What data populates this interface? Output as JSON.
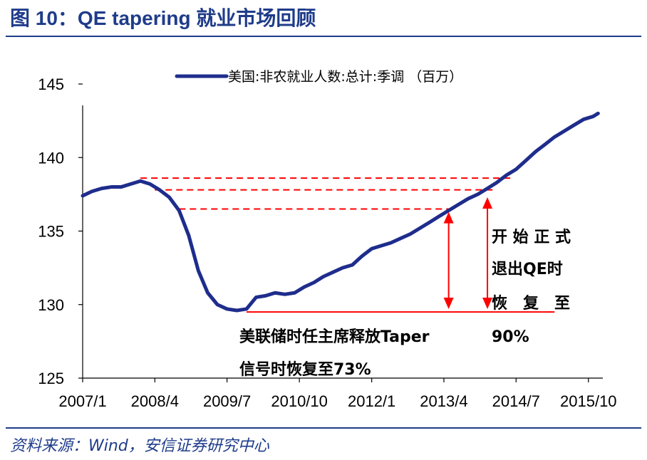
{
  "figure": {
    "title": "图 10：QE tapering 就业市场回顾",
    "source": "资料来源：Wind，安信证券研究中心"
  },
  "chart_data": {
    "type": "line",
    "title": "",
    "xlabel": "",
    "ylabel": "",
    "ylim": [
      125,
      145
    ],
    "y_ticks": [
      125,
      130,
      135,
      140,
      145
    ],
    "x_tick_labels": [
      "2007/1",
      "2008/4",
      "2009/7",
      "2010/10",
      "2012/1",
      "2013/4",
      "2014/7",
      "2015/10"
    ],
    "x_tick_dates": [
      "2007-01",
      "2008-04",
      "2009-07",
      "2010-10",
      "2012-01",
      "2013-04",
      "2014-07",
      "2015-10"
    ],
    "grid": false,
    "legend_position": "top",
    "colors": {
      "series": "#1e2d8c",
      "annotation": "#ff0000"
    },
    "series": [
      {
        "name": "美国:非农就业人数:总计:季调 （百万）",
        "x": [
          "2007-01",
          "2007-03",
          "2007-05",
          "2007-07",
          "2007-09",
          "2007-11",
          "2008-01",
          "2008-03",
          "2008-05",
          "2008-07",
          "2008-09",
          "2008-11",
          "2009-01",
          "2009-03",
          "2009-05",
          "2009-07",
          "2009-09",
          "2009-11",
          "2010-01",
          "2010-03",
          "2010-05",
          "2010-07",
          "2010-09",
          "2010-11",
          "2011-01",
          "2011-03",
          "2011-05",
          "2011-07",
          "2011-09",
          "2011-11",
          "2012-01",
          "2012-03",
          "2012-05",
          "2012-07",
          "2012-09",
          "2012-11",
          "2013-01",
          "2013-03",
          "2013-05",
          "2013-07",
          "2013-09",
          "2013-11",
          "2014-01",
          "2014-03",
          "2014-05",
          "2014-07",
          "2014-09",
          "2014-11",
          "2015-01",
          "2015-03",
          "2015-05",
          "2015-07",
          "2015-09",
          "2015-11",
          "2015-12"
        ],
        "values": [
          137.4,
          137.7,
          137.9,
          138.0,
          138.0,
          138.2,
          138.4,
          138.2,
          137.8,
          137.3,
          136.4,
          134.7,
          132.3,
          130.8,
          130.0,
          129.7,
          129.6,
          129.7,
          130.5,
          130.6,
          130.8,
          130.7,
          130.8,
          131.2,
          131.5,
          131.9,
          132.2,
          132.5,
          132.7,
          133.3,
          133.8,
          134.0,
          134.2,
          134.5,
          134.8,
          135.2,
          135.6,
          136.0,
          136.4,
          136.8,
          137.2,
          137.5,
          137.9,
          138.3,
          138.8,
          139.2,
          139.8,
          140.4,
          140.9,
          141.4,
          141.8,
          142.2,
          142.6,
          142.8,
          143.0
        ]
      }
    ],
    "reference_lines": [
      {
        "y": 138.6,
        "from": "2008-01",
        "to": "2014-06"
      },
      {
        "y": 137.8,
        "from": "2008-04",
        "to": "2014-03"
      },
      {
        "y": 136.5,
        "from": "2008-09",
        "to": "2013-06"
      }
    ],
    "trough_line": {
      "y": 129.5,
      "from": "2009-11",
      "to": "2015-03"
    },
    "arrows": [
      {
        "x": "2013-05",
        "from_y": 136.3,
        "to_y": 129.7
      },
      {
        "x": "2014-01",
        "from_y": 137.3,
        "to_y": 129.7
      }
    ],
    "annotations": {
      "taper_signal_line1": "美联储时任主席释放Taper",
      "taper_signal_line2": "信号时恢复至73%",
      "qe_exit_line1": "开 始 正 式",
      "qe_exit_line2": "退出QE时",
      "qe_exit_line3": "恢　复　至",
      "qe_exit_line4": "90%"
    }
  }
}
